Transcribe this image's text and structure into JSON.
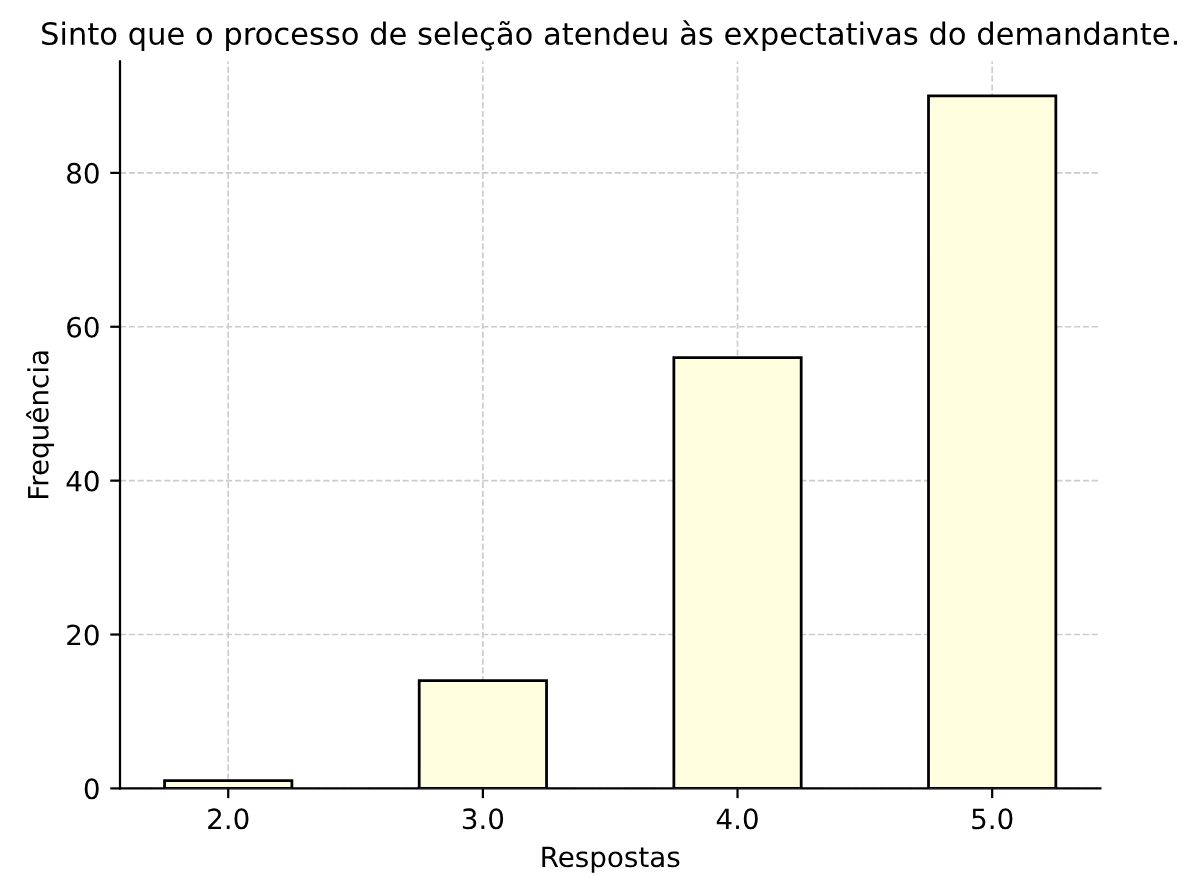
{
  "chart_data": {
    "type": "bar",
    "title": "Sinto que o processo de seleção atendeu às expectativas do demandante.",
    "xlabel": "Respostas",
    "ylabel": "Frequência",
    "categories": [
      "2.0",
      "3.0",
      "4.0",
      "5.0"
    ],
    "values": [
      1,
      14,
      56,
      90
    ],
    "color": "#ffffe0",
    "ylim": [
      0,
      94.5
    ],
    "yticks": [
      0,
      20,
      40,
      60,
      80
    ],
    "grid": true
  }
}
